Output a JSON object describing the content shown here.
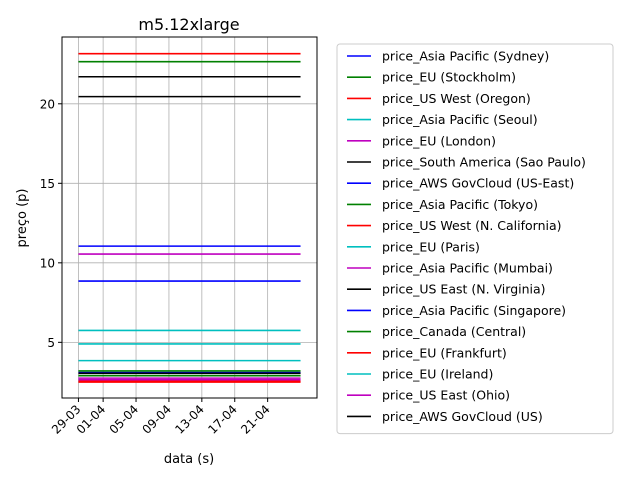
{
  "chart_data": {
    "type": "line",
    "title": "m5.12xlarge",
    "xlabel": "data (s)",
    "ylabel": "preço (p)",
    "x": [
      "2018-03-29",
      "2018-04-25"
    ],
    "x_ticks": [
      {
        "date": "2018-03-29",
        "label": "29-03"
      },
      {
        "date": "2018-04-01",
        "label": "01-04"
      },
      {
        "date": "2018-04-05",
        "label": "05-04"
      },
      {
        "date": "2018-04-09",
        "label": "09-04"
      },
      {
        "date": "2018-04-13",
        "label": "13-04"
      },
      {
        "date": "2018-04-17",
        "label": "17-04"
      },
      {
        "date": "2018-04-21",
        "label": "21-04"
      }
    ],
    "xlim": [
      "2018-03-27",
      "2018-04-27"
    ],
    "y_ticks": [
      5,
      10,
      15,
      20
    ],
    "ylim": [
      1.5,
      24.2
    ],
    "grid": true,
    "legend_position": "outside-right",
    "series": [
      {
        "name": "price_Asia Pacific (Sydney)",
        "color": "#0000ff",
        "values": [
          3.1,
          3.1
        ]
      },
      {
        "name": "price_EU (Stockholm)",
        "color": "#008000",
        "values": [
          2.9,
          2.9
        ]
      },
      {
        "name": "price_US West (Oregon)",
        "color": "#ff0000",
        "values": [
          2.5,
          2.5
        ]
      },
      {
        "name": "price_Asia Pacific (Seoul)",
        "color": "#00bfbf",
        "values": [
          3.85,
          3.85
        ]
      },
      {
        "name": "price_EU (London)",
        "color": "#bf00bf",
        "values": [
          10.55,
          10.55
        ]
      },
      {
        "name": "price_South America (Sao Paulo)",
        "color": "#000000",
        "values": [
          20.45,
          20.45
        ]
      },
      {
        "name": "price_AWS GovCloud (US-East)",
        "color": "#0000ff",
        "values": [
          11.05,
          11.05
        ]
      },
      {
        "name": "price_Asia Pacific (Tokyo)",
        "color": "#008000",
        "values": [
          22.65,
          22.65
        ]
      },
      {
        "name": "price_US West (N. California)",
        "color": "#ff0000",
        "values": [
          23.15,
          23.15
        ]
      },
      {
        "name": "price_EU (Paris)",
        "color": "#00bfbf",
        "values": [
          4.9,
          4.9
        ]
      },
      {
        "name": "price_Asia Pacific (Mumbai)",
        "color": "#bf00bf",
        "values": [
          2.65,
          2.65
        ]
      },
      {
        "name": "price_US East (N. Virginia)",
        "color": "#000000",
        "values": [
          21.7,
          21.7
        ]
      },
      {
        "name": "price_Asia Pacific (Singapore)",
        "color": "#0000ff",
        "values": [
          8.85,
          8.85
        ]
      },
      {
        "name": "price_Canada (Central)",
        "color": "#008000",
        "values": [
          3.2,
          3.2
        ]
      },
      {
        "name": "price_EU (Frankfurt)",
        "color": "#ff0000",
        "values": [
          2.55,
          2.55
        ]
      },
      {
        "name": "price_EU (Ireland)",
        "color": "#00bfbf",
        "values": [
          5.75,
          5.75
        ]
      },
      {
        "name": "price_US East (Ohio)",
        "color": "#bf00bf",
        "values": [
          2.75,
          2.75
        ]
      },
      {
        "name": "price_AWS GovCloud (US)",
        "color": "#000000",
        "values": [
          3.05,
          3.05
        ]
      }
    ]
  }
}
